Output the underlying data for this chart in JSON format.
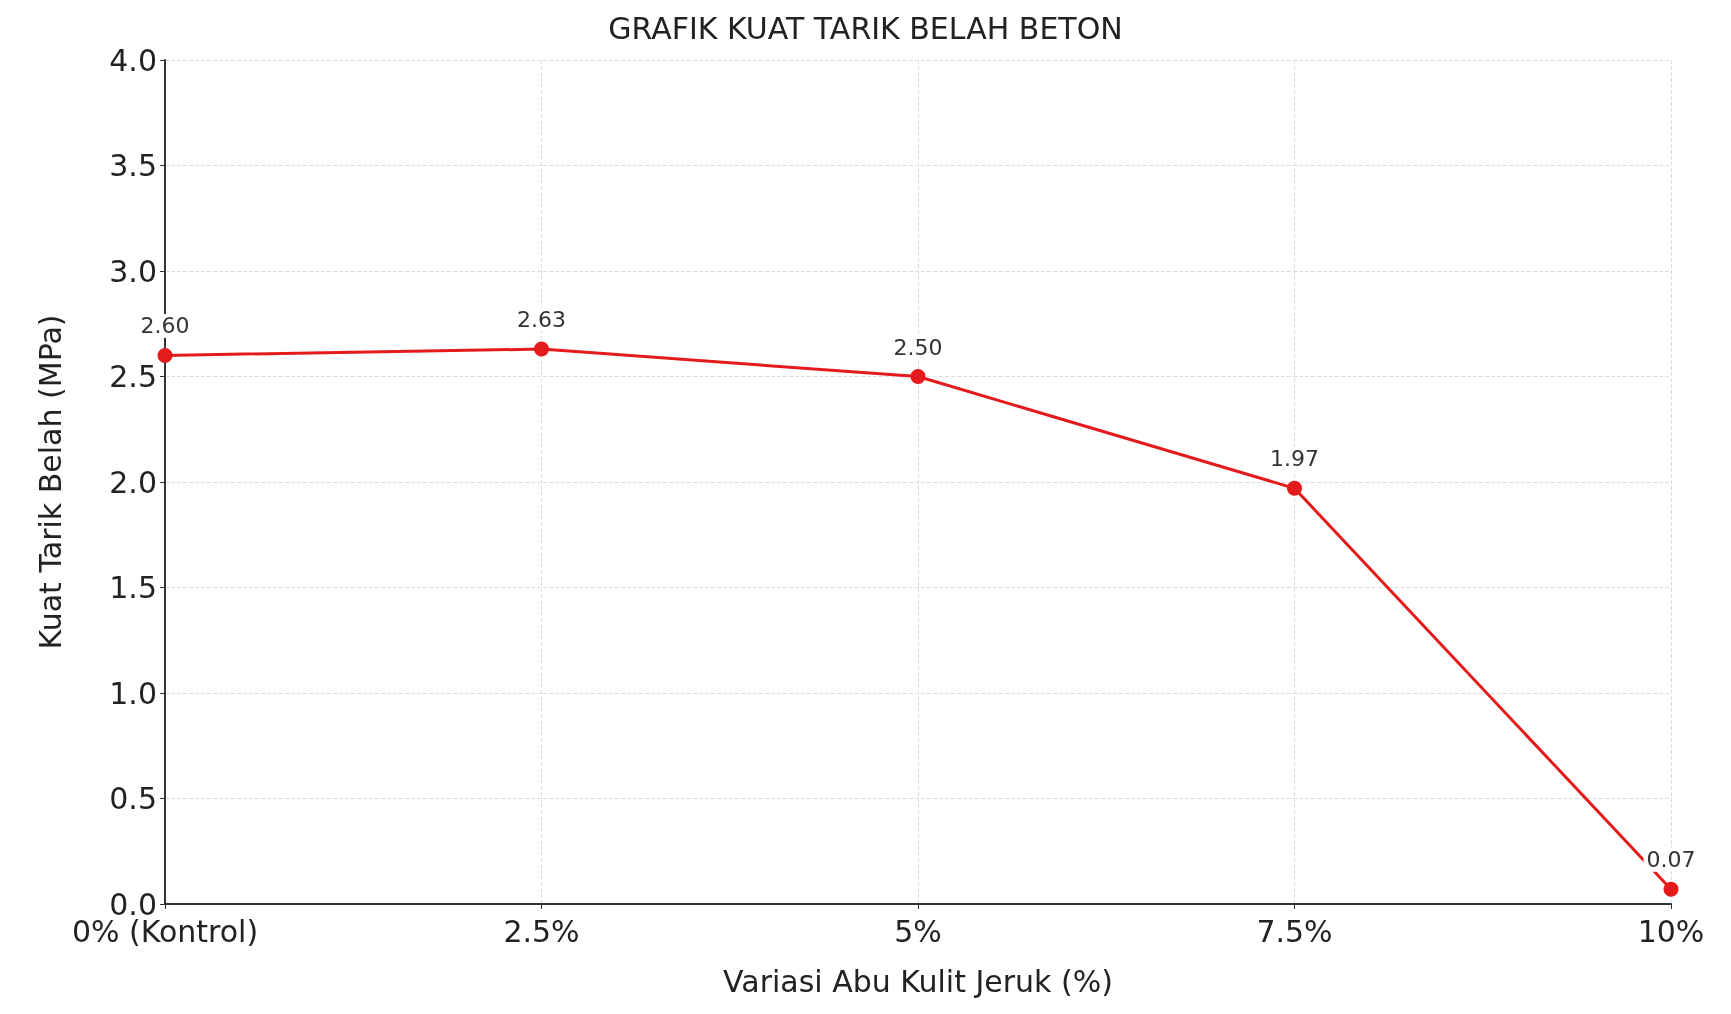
{
  "chart_data": {
    "type": "line",
    "title": "GRAFIK KUAT TARIK BELAH BETON",
    "xlabel": "Variasi Abu Kulit Jeruk (%)",
    "ylabel": "Kuat Tarik Belah (MPa)",
    "categories": [
      "0% (Kontrol)",
      "2.5%",
      "5%",
      "7.5%",
      "10%"
    ],
    "series": [
      {
        "color": "#e41a1c",
        "values": [
          2.6,
          2.63,
          2.5,
          1.97,
          0.07
        ],
        "value_labels": [
          "2.60",
          "2.63",
          "2.50",
          "1.97",
          "0.07"
        ]
      }
    ],
    "ylim": [
      0,
      4
    ],
    "yticks": [
      {
        "value": 0,
        "label": "0.0"
      },
      {
        "value": 0.5,
        "label": "0.5"
      },
      {
        "value": 1,
        "label": "1.0"
      },
      {
        "value": 1.5,
        "label": "1.5"
      },
      {
        "value": 2,
        "label": "2.0"
      },
      {
        "value": 2.5,
        "label": "2.5"
      },
      {
        "value": 3,
        "label": "3.0"
      },
      {
        "value": 3.5,
        "label": "3.5"
      },
      {
        "value": 4,
        "label": "4.0"
      }
    ],
    "grid": true,
    "marker": "circle",
    "line_style": "solid"
  }
}
